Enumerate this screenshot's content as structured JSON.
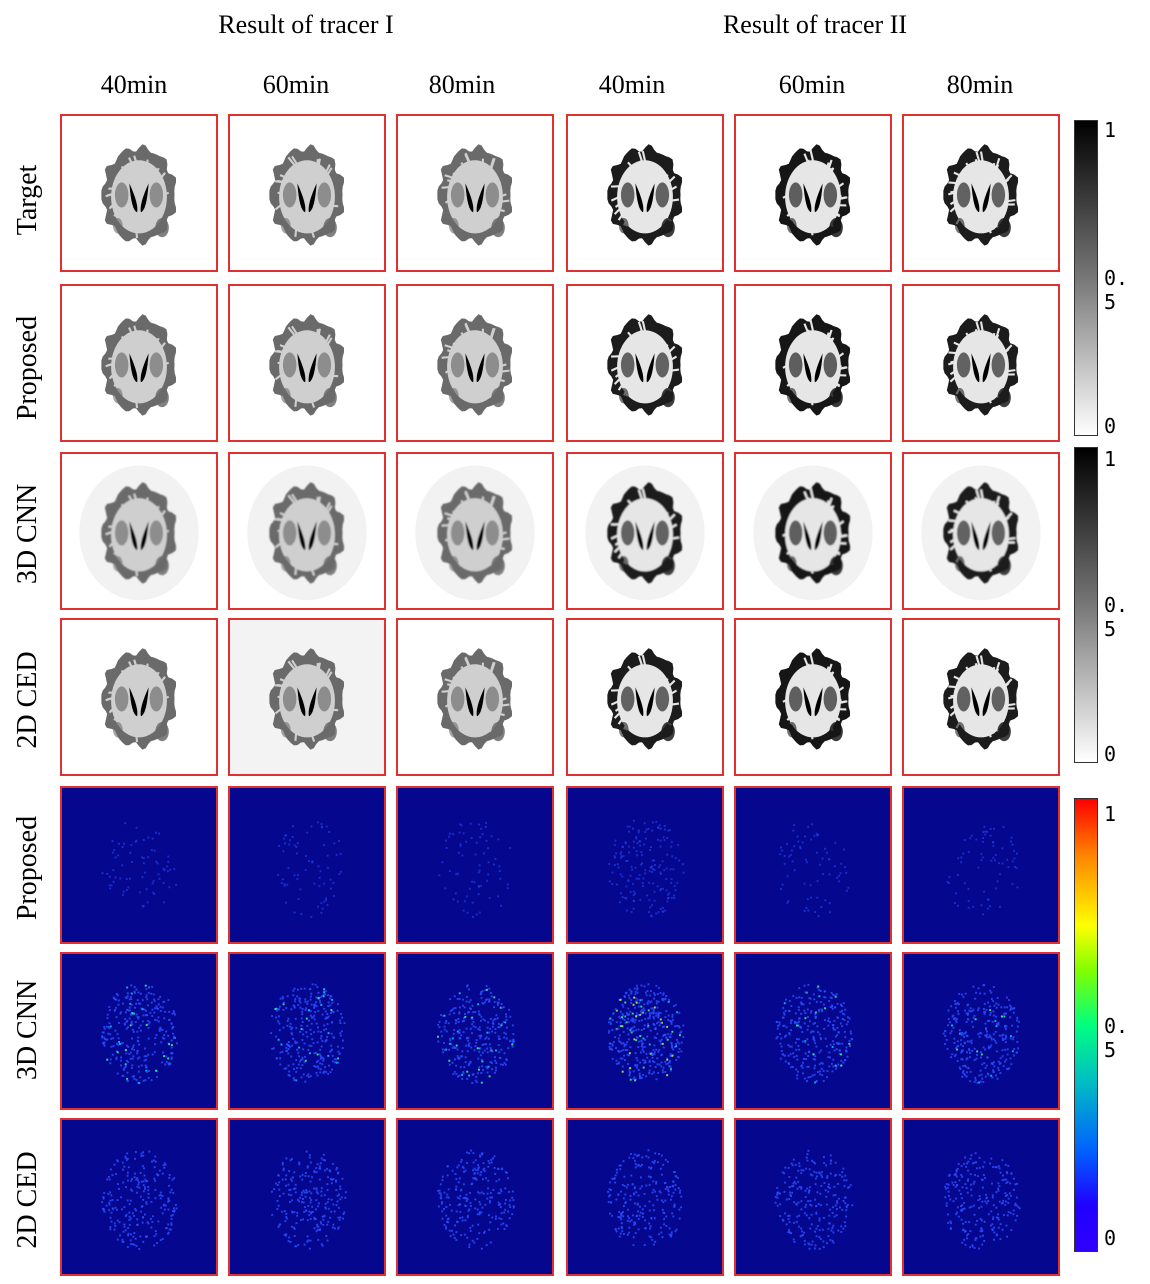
{
  "header": {
    "group_titles": [
      "Result of tracer I",
      "Result of tracer II"
    ],
    "columns": [
      "40min",
      "60min",
      "80min",
      "40min",
      "60min",
      "80min"
    ]
  },
  "rows": [
    {
      "label": "Target",
      "kind": "gray",
      "variant": "target"
    },
    {
      "label": "Proposed",
      "kind": "gray",
      "variant": "proposed"
    },
    {
      "label": "3D CNN",
      "kind": "gray",
      "variant": "cnn"
    },
    {
      "label": "2D CED",
      "kind": "gray",
      "variant": "ced"
    },
    {
      "label": "Proposed",
      "kind": "error",
      "variant": "proposed"
    },
    {
      "label": "3D CNN",
      "kind": "error",
      "variant": "cnn"
    },
    {
      "label": "2D CED",
      "kind": "error",
      "variant": "ced"
    }
  ],
  "colorbars": [
    {
      "type": "gray",
      "ticks": [
        "1",
        "0. 5",
        "0"
      ]
    },
    {
      "type": "gray",
      "ticks": [
        "1",
        "0. 5",
        "0"
      ]
    },
    {
      "type": "jet",
      "ticks": [
        "1",
        "0. 5",
        "0"
      ]
    }
  ],
  "colors": {
    "panel_border": "#e03030",
    "error_background": "#06078f",
    "error_speckle": "#2a4cff",
    "brain_gray": "#8a8a8a",
    "brain_dark": "#1a1a1a"
  }
}
